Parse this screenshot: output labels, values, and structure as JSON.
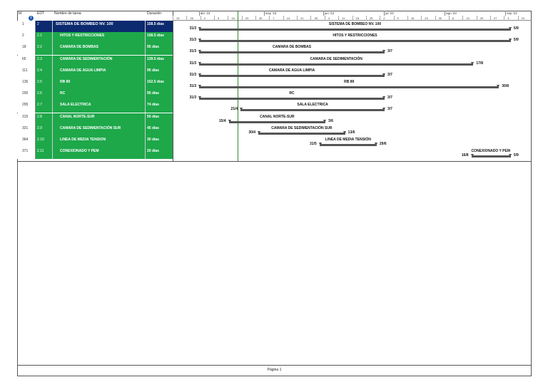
{
  "columns": {
    "id": "Id",
    "edt": "EDT",
    "name": "Nombre de tarea",
    "duration": "Duración"
  },
  "timescale": {
    "months": [
      "abr '23",
      "may '23",
      "jun '23",
      "jul '23",
      "ago '23",
      "sep '23"
    ],
    "days": [
      "19",
      "26",
      "2",
      "9",
      "16",
      "23",
      "30",
      "7",
      "14",
      "21",
      "28",
      "4",
      "11",
      "18",
      "25",
      "2",
      "9",
      "16",
      "23",
      "30",
      "6",
      "13",
      "20",
      "27",
      "3",
      "10"
    ]
  },
  "tasks": [
    {
      "id": "1",
      "edt": "2",
      "name": "SISTEMA DE BOMBEO NV. 100",
      "duration": "158.5 días",
      "type": "summary",
      "start": "31/3",
      "end": "5/9",
      "label": "SISTEMA DE BOMBEO NV. 100"
    },
    {
      "id": "2",
      "edt": "2.1",
      "name": "HITOS Y RESTRICCIONES",
      "duration": "158.5 días",
      "type": "summary",
      "start": "31/3",
      "end": "5/9",
      "label": "HITOS Y RESTRICCIONES"
    },
    {
      "id": "18",
      "edt": "2.2",
      "name": "CAMARA DE BOMBAS",
      "duration": "95 días",
      "type": "summary",
      "start": "31/3",
      "end": "3/7",
      "label": "CAMARA DE BOMBAS"
    },
    {
      "id": "65",
      "edt": "2.3",
      "name": "CAMARA DE SEDIMENTACIÓN",
      "duration": "139.5 días",
      "type": "summary",
      "start": "31/3",
      "end": "17/8",
      "label": "CAMARA DE SEDIMENTACIÓN"
    },
    {
      "id": "111",
      "edt": "2.4",
      "name": "CAMARA DE AGUA LIMPIA",
      "duration": "95 días",
      "type": "summary",
      "start": "31/3",
      "end": "3/7",
      "label": "CAMARA DE AGUA LIMPIA"
    },
    {
      "id": "136",
      "edt": "2.5",
      "name": "RB 89",
      "duration": "152.5 días",
      "type": "summary",
      "start": "31/3",
      "end": "30/8",
      "label": "RB 89"
    },
    {
      "id": "200",
      "edt": "2.6",
      "name": "RC",
      "duration": "95 días",
      "type": "summary",
      "start": "31/3",
      "end": "3/7",
      "label": "RC"
    },
    {
      "id": "295",
      "edt": "2.7",
      "name": "SALA ELECTRICA",
      "duration": "74 días",
      "type": "summary",
      "start": "21/4",
      "end": "3/7",
      "label": "SALA ELECTRICA"
    },
    {
      "id": "315",
      "edt": "2.8",
      "name": "CANAL NORTE-SUR",
      "duration": "50 días",
      "type": "summary",
      "start": "15/4",
      "end": "3/6",
      "label": "CANAL NORTE-SUR"
    },
    {
      "id": "331",
      "edt": "2.9",
      "name": "CAMARA DE SEDIMENTACIÓN SUR",
      "duration": "45 días",
      "type": "summary",
      "start": "30/4",
      "end": "13/6",
      "label": "CAMARA DE SEDIMENTACIÓN SUR"
    },
    {
      "id": "364",
      "edt": "2.10",
      "name": "LINEA DE MEDIA TENSION",
      "duration": "30 días",
      "type": "summary",
      "start": "31/5",
      "end": "29/6",
      "label": "LINEA DE MEDIA TENSIÓN"
    },
    {
      "id": "371",
      "edt": "2.11",
      "name": "CONEXIONADO Y PEM",
      "duration": "20 días",
      "type": "summary",
      "start": "16/8",
      "end": "5/9",
      "label": "CONEXIONADO Y PEM"
    }
  ],
  "footer": "Página 1"
}
